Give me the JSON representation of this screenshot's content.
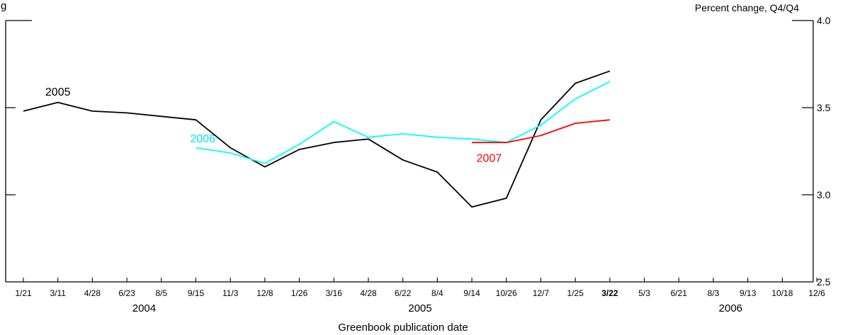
{
  "chart_data": {
    "type": "line",
    "title": "",
    "subtitle": "",
    "top_left_fragment": "g",
    "units_label": "Percent change, Q4/Q4",
    "xlabel": "Greenbook publication date",
    "ylabel": "",
    "ylim": [
      2.5,
      4.0
    ],
    "yticks": [
      "2.5",
      "3.0",
      "3.5",
      "4.0"
    ],
    "y_axis_side": "right",
    "grid": false,
    "x_dates": [
      "1/21",
      "3/11",
      "4/28",
      "6/23",
      "8/5",
      "9/15",
      "11/3",
      "12/8",
      "1/26",
      "3/16",
      "4/28",
      "6/22",
      "8/4",
      "9/14",
      "10/26",
      "12/7",
      "1/25",
      "3/22",
      "5/3",
      "6/21",
      "8/3",
      "9/13",
      "10/18",
      "12/6"
    ],
    "x_bold_index": 17,
    "x_years": [
      {
        "label": "2004",
        "center_index": 3.5
      },
      {
        "label": "2005",
        "center_index": 11.5
      },
      {
        "label": "2006",
        "center_index": 20.5
      }
    ],
    "series": [
      {
        "name": "2005",
        "color": "#000000",
        "start_index": 0,
        "values": [
          3.48,
          3.53,
          3.48,
          3.47,
          3.45,
          3.43,
          3.27,
          3.16,
          3.26,
          3.3,
          3.32,
          3.2,
          3.13,
          2.93,
          2.98,
          3.43,
          3.64,
          3.71
        ]
      },
      {
        "name": "2006",
        "color": "#00ffff",
        "start_index": 5,
        "values": [
          3.27,
          3.24,
          3.18,
          3.29,
          3.42,
          3.33,
          3.35,
          3.33,
          3.32,
          3.3,
          3.4,
          3.55,
          3.65
        ]
      },
      {
        "name": "2007",
        "color": "#ff0000",
        "start_index": 13,
        "values": [
          3.3,
          3.3,
          3.34,
          3.41,
          3.43
        ]
      }
    ],
    "series_labels": [
      {
        "text": "2005",
        "color": "#000000",
        "at_index": 1.0,
        "at_value": 3.57,
        "anchor": "middle"
      },
      {
        "text": "2006",
        "color": "#00e5ee",
        "at_index": 5.2,
        "at_value": 3.3,
        "anchor": "middle"
      },
      {
        "text": "2007",
        "color": "#ff0000",
        "at_index": 13.5,
        "at_value": 3.19,
        "anchor": "middle"
      }
    ]
  }
}
